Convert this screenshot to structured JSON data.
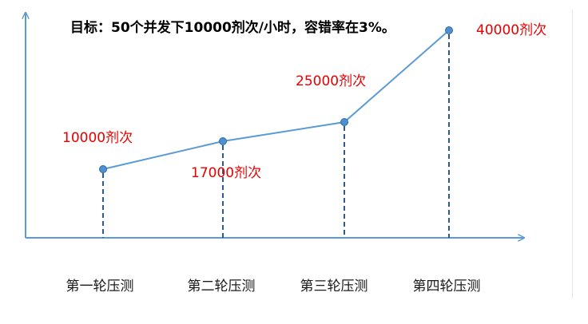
{
  "chart_data": {
    "type": "line",
    "title": "目标：50个并发下10000剂次/小时，容错率在3%。",
    "categories": [
      "第一轮压测",
      "第二轮压测",
      "第三轮压测",
      "第四轮压测"
    ],
    "values": [
      10000,
      17000,
      25000,
      40000
    ],
    "data_labels": [
      "10000剂次",
      "17000剂次",
      "25000剂次",
      "40000剂次"
    ],
    "xlabel": "",
    "ylabel": "",
    "ylim": [
      0,
      42000
    ],
    "grid": false,
    "legend": "none"
  },
  "colors": {
    "line": "#5b9bd5",
    "marker_fill": "#4f8fd0",
    "marker_stroke": "#2e6ca8",
    "drop_line": "#2f5b8a",
    "axis": "#5b9bd5",
    "data_label": "#e60000",
    "title": "#000000",
    "category_label": "#1a1a1a"
  }
}
